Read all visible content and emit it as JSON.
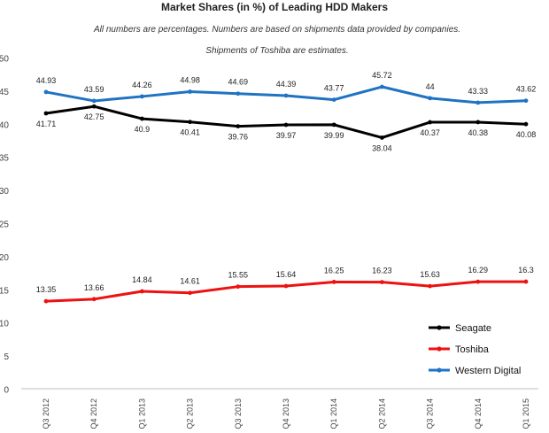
{
  "chart_data": {
    "type": "line",
    "title": "Market Shares (in %) of Leading HDD Makers",
    "subtitles": [
      "All numbers are percentages. Numbers are based on  shipments data provided by companies.",
      "Shipments of Toshiba are estimates."
    ],
    "categories": [
      "Q3 2012",
      "Q4 2012",
      "Q1 2013",
      "Q2 2013",
      "Q3 2013",
      "Q4 2013",
      "Q1 2014",
      "Q2 2014",
      "Q3 2014",
      "Q4 2014",
      "Q1 2015"
    ],
    "ylim": [
      0,
      50
    ],
    "yticks": [
      "0",
      "5",
      "10",
      "15",
      "20",
      "25",
      "30",
      "35",
      "40",
      "45",
      "50"
    ],
    "ytick_values": [
      0,
      5,
      10,
      15,
      20,
      25,
      30,
      35,
      40,
      45,
      50
    ],
    "series": [
      {
        "name": "Seagate",
        "color": "#000000",
        "values": [
          41.71,
          42.75,
          40.9,
          40.41,
          39.76,
          39.97,
          39.99,
          38.04,
          40.37,
          40.38,
          40.08
        ],
        "labels": [
          "41.71",
          "42.75",
          "40.9",
          "40.41",
          "39.76",
          "39.97",
          "39.99",
          "38.04",
          "40.37",
          "40.38",
          "40.08"
        ],
        "label_position": "below"
      },
      {
        "name": "Toshiba",
        "color": "#ee1111",
        "values": [
          13.35,
          13.66,
          14.84,
          14.61,
          15.55,
          15.64,
          16.25,
          16.23,
          15.63,
          16.29,
          16.3
        ],
        "labels": [
          "13.35",
          "13.66",
          "14.84",
          "14.61",
          "15.55",
          "15.64",
          "16.25",
          "16.23",
          "15.63",
          "16.29",
          "16.3"
        ],
        "label_position": "above"
      },
      {
        "name": "Western Digital",
        "color": "#1f73c2",
        "values": [
          44.93,
          43.59,
          44.26,
          44.98,
          44.69,
          44.39,
          43.77,
          45.72,
          44.0,
          43.33,
          43.62
        ],
        "labels": [
          "44.93",
          "43.59",
          "44.26",
          "44.98",
          "44.69",
          "44.39",
          "43.77",
          "45.72",
          "44",
          "43.33",
          "43.62"
        ],
        "label_position": "above"
      }
    ],
    "legend": {
      "placement": "bottom-right",
      "order": [
        "Seagate",
        "Toshiba",
        "Western Digital"
      ]
    },
    "grid": false
  }
}
